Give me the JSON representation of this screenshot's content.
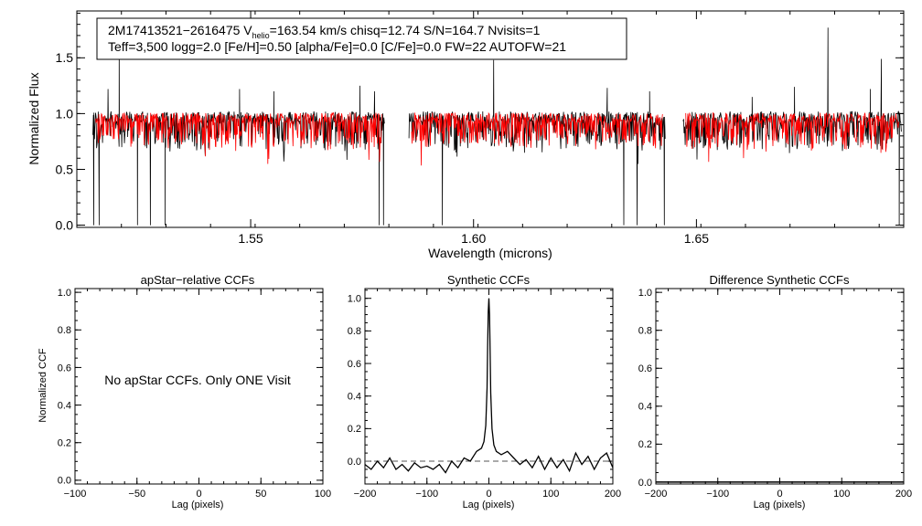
{
  "chart_data": [
    {
      "type": "line",
      "id": "spectrum",
      "title": "",
      "xlabel": "Wavelength (microns)",
      "ylabel": "Normalized Flux",
      "xlim": [
        1.511,
        1.6965
      ],
      "ylim": [
        -0.02,
        1.92
      ],
      "xticks": [
        {
          "value": 1.55,
          "label": "1.55"
        },
        {
          "value": 1.6,
          "label": "1.60"
        },
        {
          "value": 1.65,
          "label": "1.65"
        }
      ],
      "yticks": [
        {
          "value": 0.0,
          "label": "0.0"
        },
        {
          "value": 0.5,
          "label": "0.5"
        },
        {
          "value": 1.0,
          "label": "1.0"
        },
        {
          "value": 1.5,
          "label": "1.5"
        }
      ],
      "info_box": {
        "line1_prefix": "2M17413521−2616475  V",
        "line1_sub": "helio",
        "line1_suffix": "=163.54 km/s  chisq=12.74  S/N=164.7  Nvisits=1",
        "line2": "Teff=3,500 logg=2.0 [Fe/H]=0.50 [alpha/Fe]=0.0 [C/Fe]=0.0 FW=22 AUTOFW=21"
      },
      "series": [
        {
          "name": "observed spectrum",
          "color": "#000000"
        },
        {
          "name": "best-fit synthetic model",
          "color": "#ff0000"
        }
      ],
      "chips": [
        [
          1.5146,
          1.58
        ],
        [
          1.5855,
          1.643
        ],
        [
          1.647,
          1.696
        ]
      ],
      "emission_spikes": [
        [
          1.5205,
          1.58
        ],
        [
          1.518,
          1.22
        ],
        [
          1.5475,
          1.22
        ],
        [
          1.5552,
          1.2
        ],
        [
          1.5745,
          1.25
        ],
        [
          1.5778,
          1.2
        ],
        [
          1.6045,
          1.48
        ],
        [
          1.63,
          1.23
        ],
        [
          1.6395,
          1.2
        ],
        [
          1.6625,
          1.15
        ],
        [
          1.672,
          1.24
        ],
        [
          1.6795,
          1.77
        ],
        [
          1.689,
          1.22
        ],
        [
          1.6915,
          1.49
        ]
      ],
      "absorption_dips": [
        [
          1.5148,
          0.0
        ],
        [
          1.516,
          0.0
        ],
        [
          1.5246,
          0.0
        ],
        [
          1.5275,
          0.0
        ],
        [
          1.5308,
          0.0
        ],
        [
          1.5788,
          0.0
        ],
        [
          1.5798,
          0.0
        ],
        [
          1.593,
          0.0
        ],
        [
          1.6337,
          0.0
        ],
        [
          1.6367,
          0.0
        ],
        [
          1.6428,
          0.0
        ],
        [
          1.6955,
          0.0
        ]
      ]
    },
    {
      "type": "line",
      "id": "apstar_ccf",
      "title": "apStar−relative CCFs",
      "xlabel": "Lag (pixels)",
      "ylabel": "Normalized CCF",
      "xlim": [
        -100,
        100
      ],
      "ylim": [
        -0.02,
        1.02
      ],
      "xticks": [
        {
          "value": -100,
          "label": "−100"
        },
        {
          "value": -50,
          "label": "−50"
        },
        {
          "value": 0,
          "label": "0"
        },
        {
          "value": 50,
          "label": "50"
        },
        {
          "value": 100,
          "label": "100"
        }
      ],
      "yticks": [
        {
          "value": 0.0,
          "label": "0.0"
        },
        {
          "value": 0.2,
          "label": "0.2"
        },
        {
          "value": 0.4,
          "label": "0.4"
        },
        {
          "value": 0.6,
          "label": "0.6"
        },
        {
          "value": 0.8,
          "label": "0.8"
        },
        {
          "value": 1.0,
          "label": "1.0"
        }
      ],
      "annotation": "No apStar CCFs.  Only ONE Visit",
      "series": []
    },
    {
      "type": "line",
      "id": "synthetic_ccf",
      "title": "Synthetic CCFs",
      "xlabel": "Lag (pixels)",
      "ylabel": "",
      "xlim": [
        -200,
        200
      ],
      "ylim": [
        -0.14,
        1.06
      ],
      "xticks": [
        {
          "value": -200,
          "label": "−200"
        },
        {
          "value": -100,
          "label": "−100"
        },
        {
          "value": 0,
          "label": "0"
        },
        {
          "value": 100,
          "label": "100"
        },
        {
          "value": 200,
          "label": "200"
        }
      ],
      "yticks": [
        {
          "value": 0.0,
          "label": "0.0"
        },
        {
          "value": 0.2,
          "label": "0.2"
        },
        {
          "value": 0.4,
          "label": "0.4"
        },
        {
          "value": 0.6,
          "label": "0.6"
        },
        {
          "value": 0.8,
          "label": "0.8"
        },
        {
          "value": 1.0,
          "label": "1.0"
        }
      ],
      "reference_line": 0.0,
      "series": [
        {
          "name": "synthetic CCF",
          "color": "#000000",
          "x": [
            -200,
            -190,
            -180,
            -170,
            -160,
            -150,
            -140,
            -130,
            -120,
            -110,
            -100,
            -90,
            -80,
            -70,
            -60,
            -50,
            -40,
            -30,
            -20,
            -12,
            -8,
            -5,
            -3,
            -2,
            -1,
            0,
            1,
            2,
            3,
            5,
            8,
            12,
            20,
            30,
            40,
            50,
            60,
            70,
            80,
            90,
            100,
            110,
            120,
            130,
            140,
            150,
            160,
            170,
            180,
            190,
            200
          ],
          "y": [
            -0.02,
            -0.05,
            0.0,
            -0.04,
            0.02,
            -0.05,
            -0.02,
            -0.06,
            -0.01,
            -0.04,
            -0.03,
            -0.05,
            -0.02,
            -0.07,
            0.0,
            -0.04,
            0.02,
            0.0,
            0.06,
            0.08,
            0.12,
            0.22,
            0.45,
            0.7,
            0.92,
            1.0,
            0.9,
            0.65,
            0.42,
            0.2,
            0.1,
            0.06,
            0.04,
            0.06,
            0.02,
            -0.02,
            0.01,
            -0.04,
            0.03,
            -0.05,
            0.02,
            -0.04,
            0.01,
            -0.06,
            0.05,
            -0.02,
            0.03,
            -0.05,
            0.02,
            0.05,
            -0.04
          ]
        }
      ]
    },
    {
      "type": "line",
      "id": "difference_ccf",
      "title": "Difference Synthetic CCFs",
      "xlabel": "Lag (pixels)",
      "ylabel": "",
      "xlim": [
        -200,
        200
      ],
      "ylim": [
        -0.01,
        1.02
      ],
      "xticks": [
        {
          "value": -200,
          "label": "−200"
        },
        {
          "value": -100,
          "label": "−100"
        },
        {
          "value": 0,
          "label": "0"
        },
        {
          "value": 100,
          "label": "100"
        },
        {
          "value": 200,
          "label": "200"
        }
      ],
      "yticks": [
        {
          "value": 0.0,
          "label": "0.0"
        },
        {
          "value": 0.2,
          "label": "0.2"
        },
        {
          "value": 0.4,
          "label": "0.4"
        },
        {
          "value": 0.6,
          "label": "0.6"
        },
        {
          "value": 0.8,
          "label": "0.8"
        },
        {
          "value": 1.0,
          "label": "1.0"
        }
      ],
      "series": [
        {
          "name": "difference CCF",
          "color": "#000000",
          "x": [
            -200,
            200
          ],
          "y": [
            0.0,
            0.0
          ]
        }
      ]
    }
  ]
}
